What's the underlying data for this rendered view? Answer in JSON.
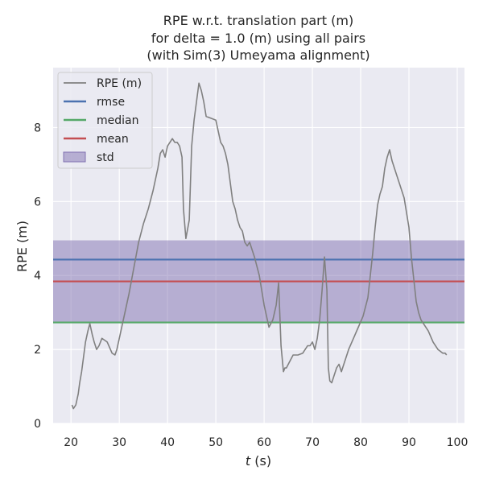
{
  "chart_data": {
    "type": "line",
    "title": [
      "RPE w.r.t. translation part (m)",
      "for delta = 1.0 (m) using all pairs",
      "(with Sim(3) Umeyama alignment)"
    ],
    "xlabel_var": "t",
    "xlabel_unit": " (s)",
    "ylabel": "RPE (m)",
    "xlim": [
      16.3,
      101.5
    ],
    "ylim": [
      0,
      9.62
    ],
    "xticks": [
      20,
      30,
      40,
      50,
      60,
      70,
      80,
      90,
      100
    ],
    "yticks": [
      0,
      2,
      4,
      6,
      8
    ],
    "grid": true,
    "legend_position": "top-left",
    "colors": {
      "rpe": "#808080",
      "rmse": "#4c72b0",
      "median": "#55a868",
      "mean": "#c44e52",
      "std": "#8172b2",
      "background": "#eaeaf2"
    },
    "series": [
      {
        "name": "RPE (m)",
        "kind": "line",
        "x": [
          20.2,
          20.5,
          21.0,
          21.5,
          21.8,
          22.2,
          22.6,
          23.0,
          23.5,
          23.9,
          24.4,
          24.8,
          25.3,
          25.8,
          26.4,
          27.5,
          28.5,
          29.1,
          29.5,
          30.0,
          31.0,
          32.0,
          33.0,
          34.0,
          35.0,
          36.0,
          37.0,
          38.0,
          38.5,
          39.0,
          39.5,
          40.0,
          40.5,
          41.0,
          41.5,
          42.0,
          42.5,
          43.0,
          43.3,
          43.8,
          44.5,
          45.0,
          45.5,
          46.0,
          46.5,
          47.0,
          47.5,
          48.0,
          49.0,
          50.0,
          51.0,
          51.5,
          52.0,
          52.5,
          53.0,
          53.5,
          54.0,
          54.5,
          55.0,
          55.5,
          56.0,
          56.5,
          57.0,
          57.5,
          58.0,
          59.0,
          59.5,
          60.0,
          61.0,
          61.8,
          62.5,
          63.0,
          63.5,
          64.0,
          64.3,
          64.6,
          65.0,
          66.0,
          67.0,
          68.0,
          68.5,
          69.0,
          69.5,
          70.0,
          70.5,
          71.0,
          71.5,
          72.0,
          72.5,
          73.0,
          73.3,
          73.6,
          74.0,
          74.5,
          75.0,
          75.5,
          76.0,
          76.5,
          77.5,
          78.5,
          79.5,
          80.5,
          81.5,
          82.0,
          82.5,
          83.0,
          83.5,
          84.0,
          84.5,
          85.0,
          85.5,
          86.0,
          86.5,
          87.0,
          87.5,
          88.0,
          89.0,
          90.0,
          90.5,
          91.0,
          91.5,
          92.0,
          92.5,
          93.0,
          94.0,
          95.0,
          96.0,
          96.5,
          97.0,
          97.5,
          97.8
        ],
        "y": [
          0.5,
          0.4,
          0.5,
          0.8,
          1.1,
          1.4,
          1.8,
          2.2,
          2.5,
          2.7,
          2.4,
          2.2,
          2.0,
          2.1,
          2.3,
          2.2,
          1.9,
          1.85,
          2.0,
          2.3,
          2.9,
          3.5,
          4.2,
          4.9,
          5.4,
          5.8,
          6.3,
          6.9,
          7.3,
          7.4,
          7.2,
          7.5,
          7.6,
          7.7,
          7.6,
          7.6,
          7.5,
          7.2,
          5.8,
          5.0,
          5.5,
          7.5,
          8.2,
          8.7,
          9.2,
          9.0,
          8.7,
          8.3,
          8.25,
          8.2,
          7.6,
          7.5,
          7.3,
          7.0,
          6.5,
          6.0,
          5.8,
          5.5,
          5.3,
          5.2,
          4.9,
          4.8,
          4.9,
          4.7,
          4.5,
          4.0,
          3.6,
          3.2,
          2.6,
          2.8,
          3.2,
          3.8,
          2.1,
          1.4,
          1.5,
          1.5,
          1.6,
          1.85,
          1.85,
          1.9,
          2.0,
          2.1,
          2.1,
          2.2,
          2.0,
          2.3,
          2.8,
          3.6,
          4.5,
          3.6,
          1.5,
          1.15,
          1.1,
          1.3,
          1.5,
          1.6,
          1.4,
          1.6,
          2.0,
          2.3,
          2.6,
          2.9,
          3.4,
          4.0,
          4.6,
          5.3,
          5.9,
          6.2,
          6.4,
          6.9,
          7.2,
          7.4,
          7.1,
          6.9,
          6.7,
          6.5,
          6.1,
          5.3,
          4.5,
          3.9,
          3.3,
          3.0,
          2.8,
          2.7,
          2.5,
          2.2,
          2.0,
          1.95,
          1.9,
          1.9,
          1.85
        ]
      },
      {
        "name": "rmse",
        "kind": "hline",
        "value": 4.43
      },
      {
        "name": "median",
        "kind": "hline",
        "value": 2.73
      },
      {
        "name": "mean",
        "kind": "hline",
        "value": 3.84
      },
      {
        "name": "std",
        "kind": "band",
        "lower": 2.73,
        "upper": 4.95
      }
    ],
    "legend": [
      "RPE (m)",
      "rmse",
      "median",
      "mean",
      "std"
    ]
  }
}
